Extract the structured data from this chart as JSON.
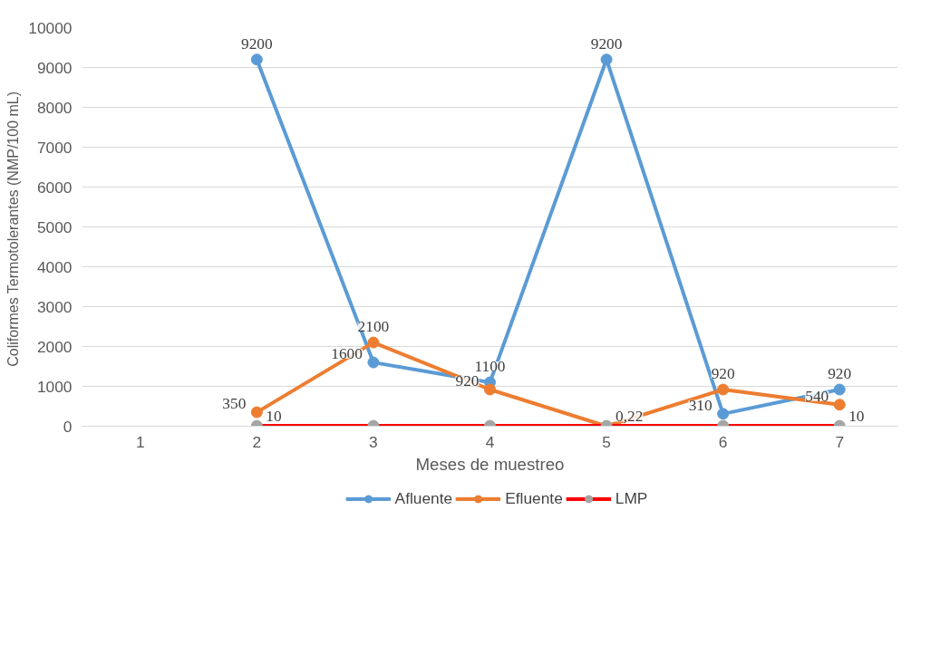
{
  "chart_data": {
    "type": "line",
    "xlabel": "Meses de muestreo",
    "ylabel": "Coliformes  Termotolerantes (NMP/100 mL)",
    "categories": [
      "1",
      "2",
      "3",
      "4",
      "5",
      "6",
      "7"
    ],
    "series": [
      {
        "name": "Afluente",
        "color": "#5b9bd5",
        "values": [
          null,
          9200,
          1600,
          1100,
          9200,
          310,
          920
        ],
        "value_labels": [
          null,
          "9200",
          "1600",
          "1100",
          "9200",
          "310",
          "920"
        ]
      },
      {
        "name": "Efluente",
        "color": "#ed7d31",
        "values": [
          null,
          350,
          2100,
          920,
          0.22,
          920,
          540
        ],
        "value_labels": [
          null,
          "350",
          "2100",
          "920",
          "0,22",
          "920",
          "540"
        ]
      },
      {
        "name": "LMP",
        "color": "#ff0000",
        "colors": [
          "#a5a5a5",
          "#a5a5a5",
          "#a5a5a5",
          "#a5a5a5",
          "#a5a5a5",
          "#a5a5a5",
          "#a5a5a5"
        ],
        "values": [
          null,
          10,
          10,
          10,
          10,
          10,
          10
        ],
        "value_labels": [
          null,
          "10",
          null,
          null,
          null,
          null,
          "10"
        ]
      }
    ],
    "ylim": [
      0,
      10000
    ],
    "yticks": [
      0,
      1000,
      2000,
      3000,
      4000,
      5000,
      6000,
      7000,
      8000,
      9000,
      10000
    ],
    "grid": "y",
    "legend": "bottom",
    "marker": "circle",
    "line_style": "solid"
  }
}
